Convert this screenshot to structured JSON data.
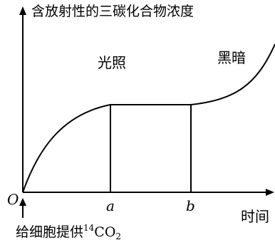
{
  "axes": {
    "y_label": "含放射性的三碳化合物浓度",
    "x_label": "时间",
    "origin": "O",
    "tick_a": "a",
    "tick_b": "b"
  },
  "regions": {
    "light": "光照",
    "dark": "黑暗"
  },
  "annotation": {
    "supply_prefix": "给细胞提供",
    "isotope_mass": "14",
    "compound_main": "CO",
    "compound_sub": "2"
  }
}
